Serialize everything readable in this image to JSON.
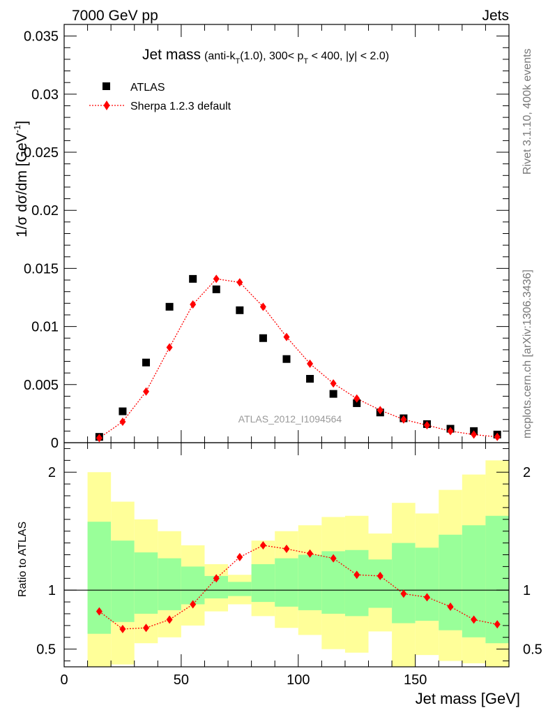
{
  "header": {
    "left": "7000 GeV pp",
    "right": "Jets"
  },
  "side_labels": {
    "rivet": "Rivet 3.1.10,  400k events",
    "mcplots": "mcplots.cern.ch [arXiv:1306.3436]"
  },
  "watermark": "ATLAS_2012_I1094564",
  "title": {
    "main": "Jet mass",
    "detail_a": "(anti-k",
    "detail_sub_t": "T",
    "detail_b": "(1.0), 300< p",
    "detail_sub_t2": "T",
    "detail_c": " < 400, |y| < 2.0)"
  },
  "top_ylabel": "1/σ dσ/dm [GeV⁻¹]",
  "top_ylabel_prefix": "1/σ dσ/dm [GeV",
  "top_ylabel_exp": "-1",
  "top_ylabel_suffix": "]",
  "ratio_ylabel": "Ratio to ATLAS",
  "xlabel": "Jet mass [GeV]",
  "legend": {
    "data": "ATLAS",
    "mc": "Sherpa 1.2.3 default"
  },
  "colors": {
    "data": "#000000",
    "mc": "#ff0000",
    "band_inner": "#99ff99",
    "band_outer": "#ffff99"
  },
  "chart_data": [
    {
      "type": "scatter",
      "xlim": [
        0,
        190
      ],
      "ylim": [
        0,
        0.036
      ],
      "yticks": [
        0.005,
        0.01,
        0.015,
        0.02,
        0.025,
        0.03,
        0.035
      ],
      "ytick_labels": [
        "0.005",
        "0.01",
        "0.015",
        "0.02",
        "0.025",
        "0.03",
        "0.035"
      ],
      "x": [
        15,
        25,
        35,
        45,
        55,
        65,
        75,
        85,
        95,
        105,
        115,
        125,
        135,
        145,
        155,
        165,
        175,
        185
      ],
      "series": [
        {
          "name": "ATLAS",
          "values": [
            0.0005,
            0.0027,
            0.0069,
            0.0117,
            0.0141,
            0.0132,
            0.0114,
            0.009,
            0.0072,
            0.0055,
            0.0042,
            0.0034,
            0.0026,
            0.0021,
            0.0016,
            0.0012,
            0.001,
            0.0007
          ]
        },
        {
          "name": "Sherpa 1.2.3 default",
          "values": [
            0.0004,
            0.0018,
            0.0044,
            0.0082,
            0.0119,
            0.0141,
            0.0138,
            0.0117,
            0.0091,
            0.0068,
            0.0051,
            0.0038,
            0.0028,
            0.002,
            0.0015,
            0.001,
            0.0007,
            0.0005
          ]
        }
      ]
    },
    {
      "type": "line",
      "xlim": [
        0,
        190
      ],
      "ylim": [
        0.35,
        2.25
      ],
      "yticks": [
        0.5,
        1,
        2
      ],
      "ytick_labels": [
        "0.5",
        "1",
        "2"
      ],
      "xticks": [
        0,
        50,
        100,
        150
      ],
      "xtick_labels": [
        "0",
        "50",
        "100",
        "150"
      ],
      "bin_edges": [
        10,
        20,
        30,
        40,
        50,
        60,
        70,
        80,
        90,
        100,
        110,
        120,
        130,
        140,
        150,
        160,
        170,
        180,
        190
      ],
      "band_outer": {
        "lo": [
          0.35,
          0.37,
          0.55,
          0.6,
          0.7,
          0.82,
          0.88,
          0.78,
          0.68,
          0.62,
          0.5,
          0.47,
          0.65,
          0.35,
          0.45,
          0.4,
          0.38,
          0.35
        ],
        "hi": [
          2.0,
          1.75,
          1.6,
          1.5,
          1.38,
          1.22,
          1.13,
          1.42,
          1.5,
          1.55,
          1.62,
          1.63,
          1.48,
          1.74,
          1.65,
          1.85,
          1.98,
          2.1
        ]
      },
      "band_inner": {
        "lo": [
          0.63,
          0.73,
          0.8,
          0.83,
          0.88,
          0.93,
          0.95,
          0.9,
          0.86,
          0.83,
          0.8,
          0.78,
          0.85,
          0.72,
          0.74,
          0.66,
          0.6,
          0.55
        ],
        "hi": [
          1.58,
          1.42,
          1.32,
          1.27,
          1.2,
          1.12,
          1.07,
          1.22,
          1.27,
          1.3,
          1.33,
          1.34,
          1.26,
          1.4,
          1.36,
          1.47,
          1.55,
          1.63
        ]
      },
      "x": [
        15,
        25,
        35,
        45,
        55,
        65,
        75,
        85,
        95,
        105,
        115,
        125,
        135,
        145,
        155,
        165,
        175,
        185
      ],
      "series": [
        {
          "name": "Sherpa 1.2.3 default",
          "values": [
            0.82,
            0.67,
            0.68,
            0.75,
            0.88,
            1.1,
            1.28,
            1.38,
            1.35,
            1.31,
            1.27,
            1.13,
            1.12,
            0.97,
            0.94,
            0.86,
            0.75,
            0.71
          ]
        }
      ],
      "reference_line": 1
    }
  ]
}
